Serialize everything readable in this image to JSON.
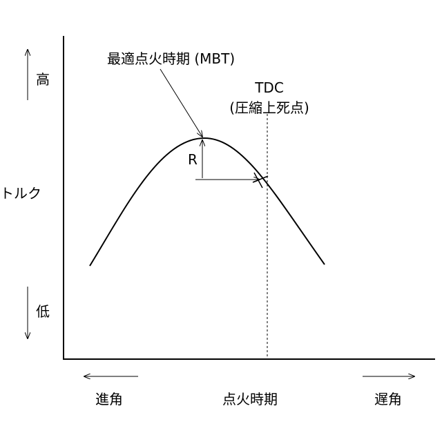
{
  "diagram": {
    "mbt_label": "最適点火時期 (MBT)",
    "tdc_label": "TDC",
    "tdc_note": "(圧縮上死点)",
    "r_label": "R",
    "y_high": "高",
    "y_axis_label": "トルク",
    "y_low": "低",
    "x_advance": "進角",
    "x_axis_label": "点火時期",
    "x_retard": "遅角"
  }
}
